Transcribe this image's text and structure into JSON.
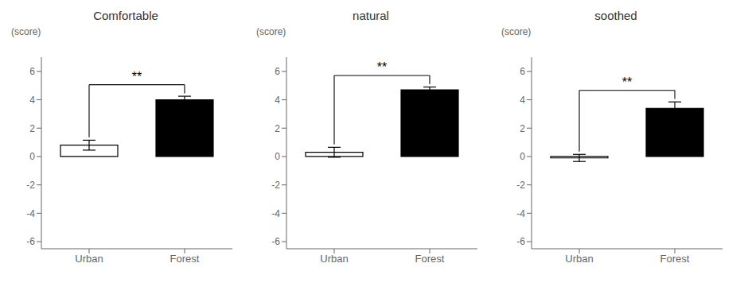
{
  "chart_data": [
    {
      "type": "bar",
      "title": "Comfortable",
      "ylabel": "(score)",
      "categories": [
        "Urban",
        "Forest"
      ],
      "values": [
        0.8,
        4.0
      ],
      "errors": [
        0.35,
        0.25
      ],
      "colors": [
        "white",
        "black"
      ],
      "annotations": [
        "**"
      ],
      "ylim": [
        -6.5,
        7.0
      ],
      "yticks": [
        -6,
        -4,
        -2,
        0,
        2,
        4,
        6
      ],
      "grid": false
    },
    {
      "type": "bar",
      "title": "natural",
      "ylabel": "(score)",
      "categories": [
        "Urban",
        "Forest"
      ],
      "values": [
        0.3,
        4.7
      ],
      "errors": [
        0.35,
        0.2
      ],
      "colors": [
        "white",
        "black"
      ],
      "annotations": [
        "**"
      ],
      "ylim": [
        -6.5,
        7.0
      ],
      "yticks": [
        -6,
        -4,
        -2,
        0,
        2,
        4,
        6
      ],
      "grid": false
    },
    {
      "type": "bar",
      "title": "soothed",
      "ylabel": "(score)",
      "categories": [
        "Urban",
        "Forest"
      ],
      "values": [
        -0.1,
        3.4
      ],
      "errors": [
        0.25,
        0.45
      ],
      "colors": [
        "white",
        "black"
      ],
      "annotations": [
        "**"
      ],
      "ylim": [
        -6.5,
        7.0
      ],
      "yticks": [
        -6,
        -4,
        -2,
        0,
        2,
        4,
        6
      ],
      "grid": false
    }
  ]
}
